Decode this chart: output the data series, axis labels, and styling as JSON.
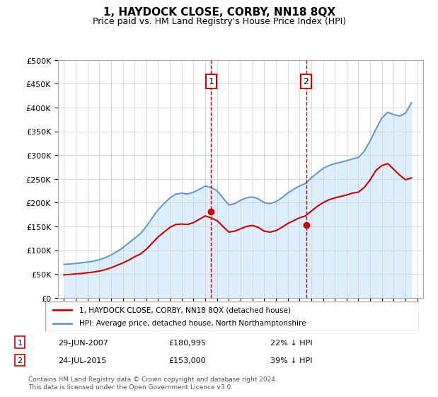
{
  "title": "1, HAYDOCK CLOSE, CORBY, NN18 8QX",
  "subtitle": "Price paid vs. HM Land Registry's House Price Index (HPI)",
  "legend_label_red": "1, HAYDOCK CLOSE, CORBY, NN18 8QX (detached house)",
  "legend_label_blue": "HPI: Average price, detached house, North Northamptonshire",
  "footer": "Contains HM Land Registry data © Crown copyright and database right 2024.\nThis data is licensed under the Open Government Licence v3.0.",
  "transaction1_date": "29-JUN-2007",
  "transaction1_price": 180995,
  "transaction1_label": "1",
  "transaction1_year": 2007.49,
  "transaction2_date": "24-JUL-2015",
  "transaction2_price": 153000,
  "transaction2_label": "2",
  "transaction2_year": 2015.56,
  "hpi_years": [
    1995,
    1995.5,
    1996,
    1996.5,
    1997,
    1997.5,
    1998,
    1998.5,
    1999,
    1999.5,
    2000,
    2000.5,
    2001,
    2001.5,
    2002,
    2002.5,
    2003,
    2003.5,
    2004,
    2004.5,
    2005,
    2005.5,
    2006,
    2006.5,
    2007,
    2007.5,
    2008,
    2008.5,
    2009,
    2009.5,
    2010,
    2010.5,
    2011,
    2011.5,
    2012,
    2012.5,
    2013,
    2013.5,
    2014,
    2014.5,
    2015,
    2015.5,
    2016,
    2016.5,
    2017,
    2017.5,
    2018,
    2018.5,
    2019,
    2019.5,
    2020,
    2020.5,
    2021,
    2021.5,
    2022,
    2022.5,
    2023,
    2023.5,
    2024,
    2024.5
  ],
  "hpi_values": [
    70000,
    71000,
    72000,
    73500,
    75000,
    77000,
    80000,
    84000,
    90000,
    97000,
    105000,
    115000,
    125000,
    135000,
    150000,
    168000,
    185000,
    198000,
    210000,
    218000,
    220000,
    218000,
    222000,
    228000,
    235000,
    232000,
    225000,
    210000,
    195000,
    198000,
    205000,
    210000,
    212000,
    208000,
    200000,
    198000,
    202000,
    210000,
    220000,
    228000,
    235000,
    240000,
    252000,
    262000,
    272000,
    278000,
    282000,
    285000,
    288000,
    292000,
    295000,
    308000,
    330000,
    355000,
    378000,
    390000,
    385000,
    382000,
    388000,
    410000
  ],
  "red_years": [
    1995,
    1995.5,
    1996,
    1996.5,
    1997,
    1997.5,
    1998,
    1998.5,
    1999,
    1999.5,
    2000,
    2000.5,
    2001,
    2001.5,
    2002,
    2002.5,
    2003,
    2003.5,
    2004,
    2004.5,
    2005,
    2005.5,
    2006,
    2006.5,
    2007,
    2007.5,
    2008,
    2008.5,
    2009,
    2009.5,
    2010,
    2010.5,
    2011,
    2011.5,
    2012,
    2012.5,
    2013,
    2013.5,
    2014,
    2014.5,
    2015,
    2015.5,
    2016,
    2016.5,
    2017,
    2017.5,
    2018,
    2018.5,
    2019,
    2019.5,
    2020,
    2020.5,
    2021,
    2021.5,
    2022,
    2022.5,
    2023,
    2023.5,
    2024,
    2024.5
  ],
  "red_values": [
    48000,
    49000,
    50000,
    51000,
    52500,
    54000,
    56000,
    59000,
    63000,
    68000,
    73000,
    79000,
    86000,
    92000,
    102000,
    115000,
    128000,
    138000,
    148000,
    154000,
    155000,
    154000,
    158000,
    165000,
    172000,
    168000,
    162000,
    150000,
    138000,
    140000,
    145000,
    150000,
    152000,
    148000,
    140000,
    138000,
    141000,
    148000,
    156000,
    162000,
    168000,
    172000,
    182000,
    192000,
    200000,
    206000,
    210000,
    213000,
    216000,
    220000,
    222000,
    232000,
    248000,
    268000,
    278000,
    282000,
    270000,
    258000,
    248000,
    252000
  ],
  "ylim": [
    0,
    500000
  ],
  "xlim": [
    1994.5,
    2025.5
  ],
  "bg_color": "#ddeeff",
  "plot_bg": "#ffffff",
  "red_color": "#cc0000",
  "blue_color": "#6699cc",
  "grid_color": "#cccccc",
  "marker_box_color": "#cc0000",
  "dashed_line_color": "#cc0000"
}
